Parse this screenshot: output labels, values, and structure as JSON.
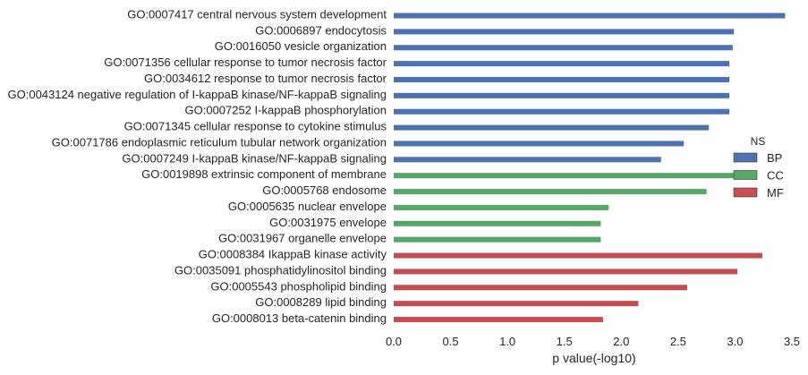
{
  "chart_data": {
    "type": "bar",
    "orientation": "horizontal",
    "title": "",
    "xlabel": "p value(-log10)",
    "ylabel": "",
    "xlim": [
      0,
      3.5
    ],
    "xticks": [
      "0.0",
      "0.5",
      "1.0",
      "1.5",
      "2.0",
      "2.5",
      "3.0",
      "3.5"
    ],
    "grid": false,
    "legend": {
      "title": "NS",
      "placement": "right",
      "entries": [
        "BP",
        "CC",
        "MF"
      ]
    },
    "categories": [
      "GO:0007417 central nervous system development",
      "GO:0006897 endocytosis",
      "GO:0016050 vesicle organization",
      "GO:0071356 cellular response to tumor necrosis factor",
      "GO:0034612 response to tumor necrosis factor",
      "GO:0043124 negative regulation of I-kappaB kinase/NF-kappaB signaling",
      "GO:0007252 I-kappaB phosphorylation",
      "GO:0071345 cellular response to cytokine stimulus",
      "GO:0071786 endoplasmic reticulum tubular network organization",
      "GO:0007249 I-kappaB kinase/NF-kappaB signaling",
      "GO:0019898 extrinsic component of membrane",
      "GO:0005768 endosome",
      "GO:0005635 nuclear envelope",
      "GO:0031975 envelope",
      "GO:0031967 organelle envelope",
      "GO:0008384 IkappaB kinase activity",
      "GO:0035091 phosphatidylinositol binding",
      "GO:0005543 phospholipid binding",
      "GO:0008289 lipid binding",
      "GO:0008013 beta-catenin binding"
    ],
    "values": [
      3.44,
      2.99,
      2.98,
      2.95,
      2.95,
      2.95,
      2.95,
      2.77,
      2.55,
      2.35,
      3.05,
      2.75,
      1.89,
      1.82,
      1.82,
      3.24,
      3.02,
      2.58,
      2.15,
      1.84
    ],
    "groups": [
      "BP",
      "BP",
      "BP",
      "BP",
      "BP",
      "BP",
      "BP",
      "BP",
      "BP",
      "BP",
      "CC",
      "CC",
      "CC",
      "CC",
      "CC",
      "MF",
      "MF",
      "MF",
      "MF",
      "MF"
    ],
    "colors": {
      "BP": "#4c72b0",
      "CC": "#55a868",
      "MF": "#c44e52"
    }
  }
}
